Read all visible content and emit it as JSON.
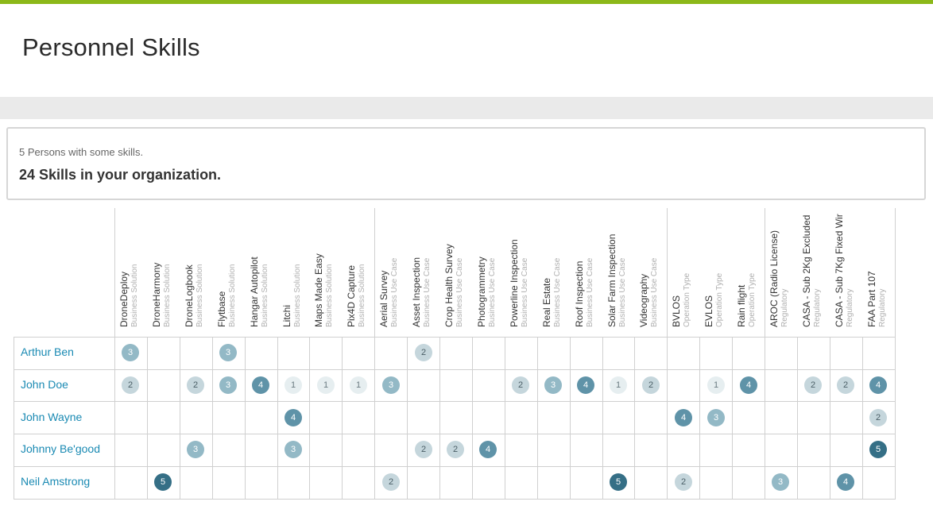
{
  "header": {
    "title": "Personnel Skills"
  },
  "summary": {
    "persons_text": "5 Persons with some skills.",
    "skills_text": "24 Skills in your organization."
  },
  "skills": [
    {
      "name": "DroneDeploy",
      "category": "Business Solution"
    },
    {
      "name": "DroneHarmony",
      "category": "Business Solution"
    },
    {
      "name": "DroneLogbook",
      "category": "Business Solution"
    },
    {
      "name": "Flytbase",
      "category": "Business Solution"
    },
    {
      "name": "Hangar Autopilot",
      "category": "Business Solution"
    },
    {
      "name": "Litchi",
      "category": "Business Solution"
    },
    {
      "name": "Maps Made Easy",
      "category": "Business Solution"
    },
    {
      "name": "Pix4D Capture",
      "category": "Business Solution"
    },
    {
      "name": "Aerial Survey",
      "category": "Business Use Case"
    },
    {
      "name": "Asset Inspection",
      "category": "Business Use Case"
    },
    {
      "name": "Crop Health Survey",
      "category": "Business Use Case"
    },
    {
      "name": "Photogrammetry",
      "category": "Business Use Case"
    },
    {
      "name": "Powerline Inspection",
      "category": "Business Use Case"
    },
    {
      "name": "Real Estate",
      "category": "Business Use Case"
    },
    {
      "name": "Roof Inspection",
      "category": "Business Use Case"
    },
    {
      "name": "Solar Farm Inspection",
      "category": "Business Use Case"
    },
    {
      "name": "Videography",
      "category": "Business Use Case"
    },
    {
      "name": "BVLOS",
      "category": "Operation Type"
    },
    {
      "name": "EVLOS",
      "category": "Operation Type"
    },
    {
      "name": "Rain flight",
      "category": "Operation Type"
    },
    {
      "name": "AROC (Radio License)",
      "category": "Regulatory"
    },
    {
      "name": "CASA - Sub 2Kg Excluded",
      "category": "Regulatory"
    },
    {
      "name": "CASA - Sub 7Kg Fixed Wir",
      "category": "Regulatory"
    },
    {
      "name": "FAA Part 107",
      "category": "Regulatory"
    }
  ],
  "persons": [
    {
      "name": "Arthur Ben",
      "levels": [
        3,
        0,
        0,
        3,
        0,
        0,
        0,
        0,
        0,
        2,
        0,
        0,
        0,
        0,
        0,
        0,
        0,
        0,
        0,
        0,
        0,
        0,
        0,
        0
      ]
    },
    {
      "name": "John Doe",
      "levels": [
        2,
        0,
        2,
        3,
        4,
        1,
        1,
        1,
        3,
        0,
        0,
        0,
        2,
        3,
        4,
        1,
        2,
        0,
        1,
        4,
        0,
        2,
        2,
        4
      ]
    },
    {
      "name": "John Wayne",
      "levels": [
        0,
        0,
        0,
        0,
        0,
        4,
        0,
        0,
        0,
        0,
        0,
        0,
        0,
        0,
        0,
        0,
        0,
        4,
        3,
        0,
        0,
        0,
        0,
        2
      ]
    },
    {
      "name": "Johnny Be'good",
      "levels": [
        0,
        0,
        3,
        0,
        0,
        3,
        0,
        0,
        0,
        2,
        2,
        4,
        0,
        0,
        0,
        0,
        0,
        0,
        0,
        0,
        0,
        0,
        0,
        5
      ]
    },
    {
      "name": "Neil Amstrong",
      "levels": [
        0,
        5,
        0,
        0,
        0,
        0,
        0,
        0,
        2,
        0,
        0,
        0,
        0,
        0,
        0,
        5,
        0,
        2,
        0,
        0,
        3,
        0,
        4,
        0
      ]
    }
  ],
  "colors": {
    "accent_bar": "#8cb819",
    "person_link": "#1a8ab3"
  }
}
